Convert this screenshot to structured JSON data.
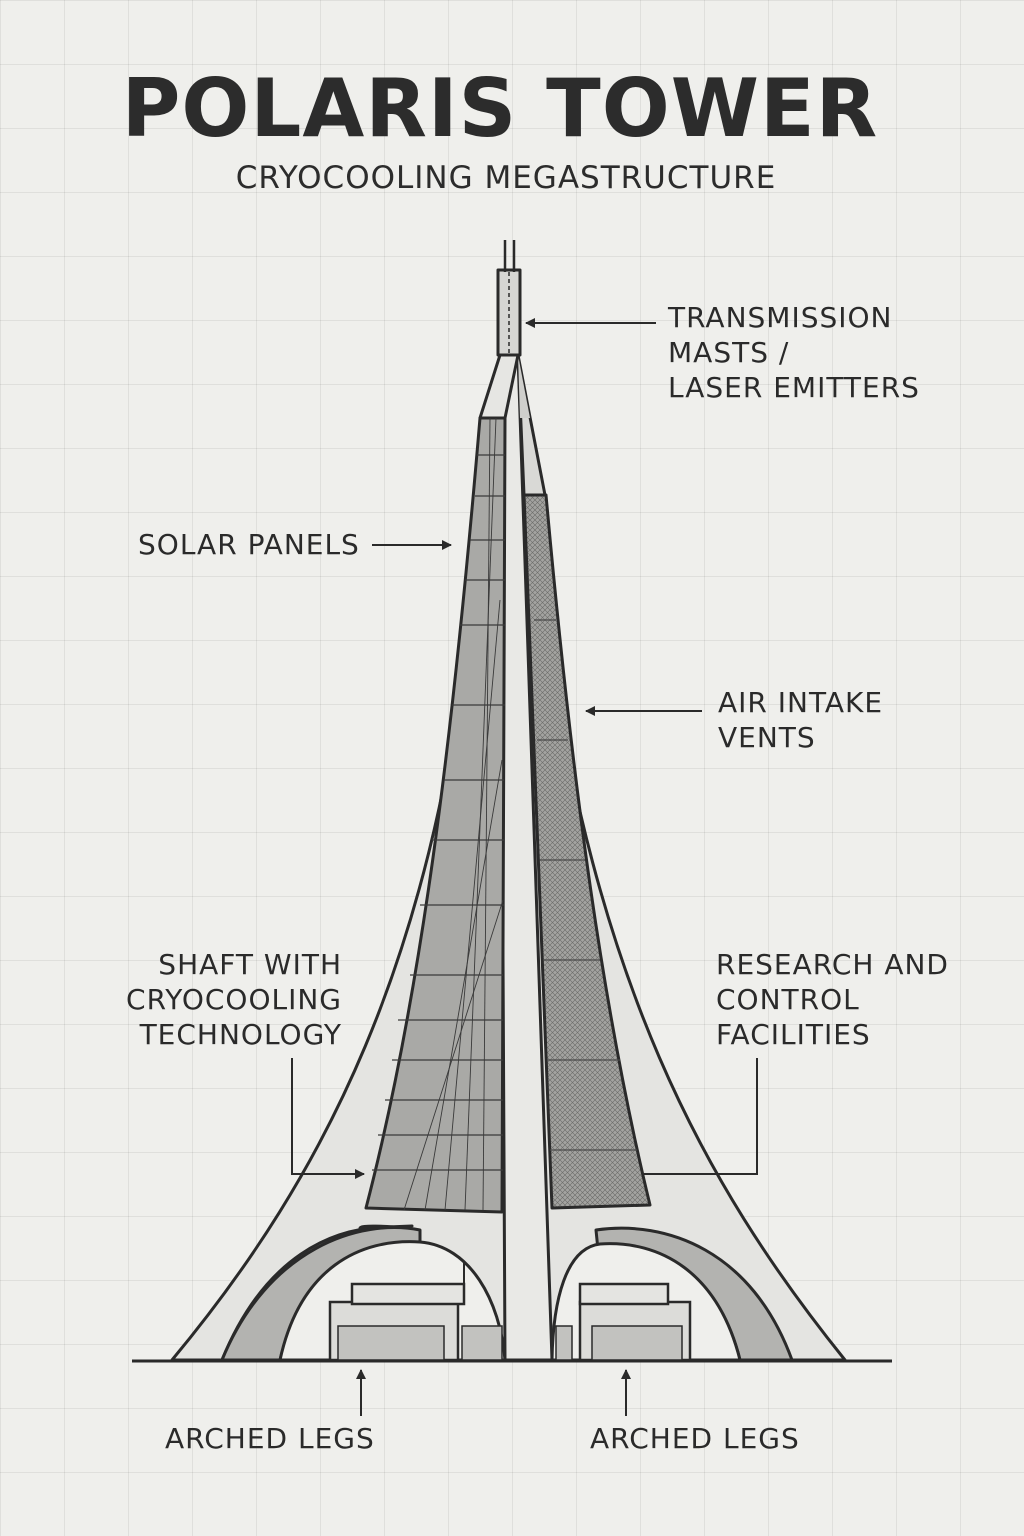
{
  "title": "POLARIS TOWER",
  "subtitle": "CRYOCOOLING MEGASTRUCTURE",
  "labels": {
    "transmission": [
      "TRANSMISSION",
      "MASTS /",
      "LASER EMITTERS"
    ],
    "solar": [
      "SOLAR PANELS"
    ],
    "air_intake": [
      "AIR INTAKE",
      "VENTS"
    ],
    "shaft": [
      "SHAFT WITH",
      "CRYOCOOLING",
      "TECHNOLOGY"
    ],
    "research": [
      "RESEARCH AND",
      "CONTROL",
      "FACILITIES"
    ],
    "arched_legs_left": [
      "ARCHED LEGS"
    ],
    "arched_legs_right": [
      "ARCHED LEGS"
    ]
  },
  "colors": {
    "background": "#efefec",
    "line": "#2a2a2a",
    "panel_fill": "#a9a9a6",
    "vent_fill": "#989895",
    "arch_fill": "#b3b3b0",
    "pale_fill": "#e3e3e0"
  }
}
